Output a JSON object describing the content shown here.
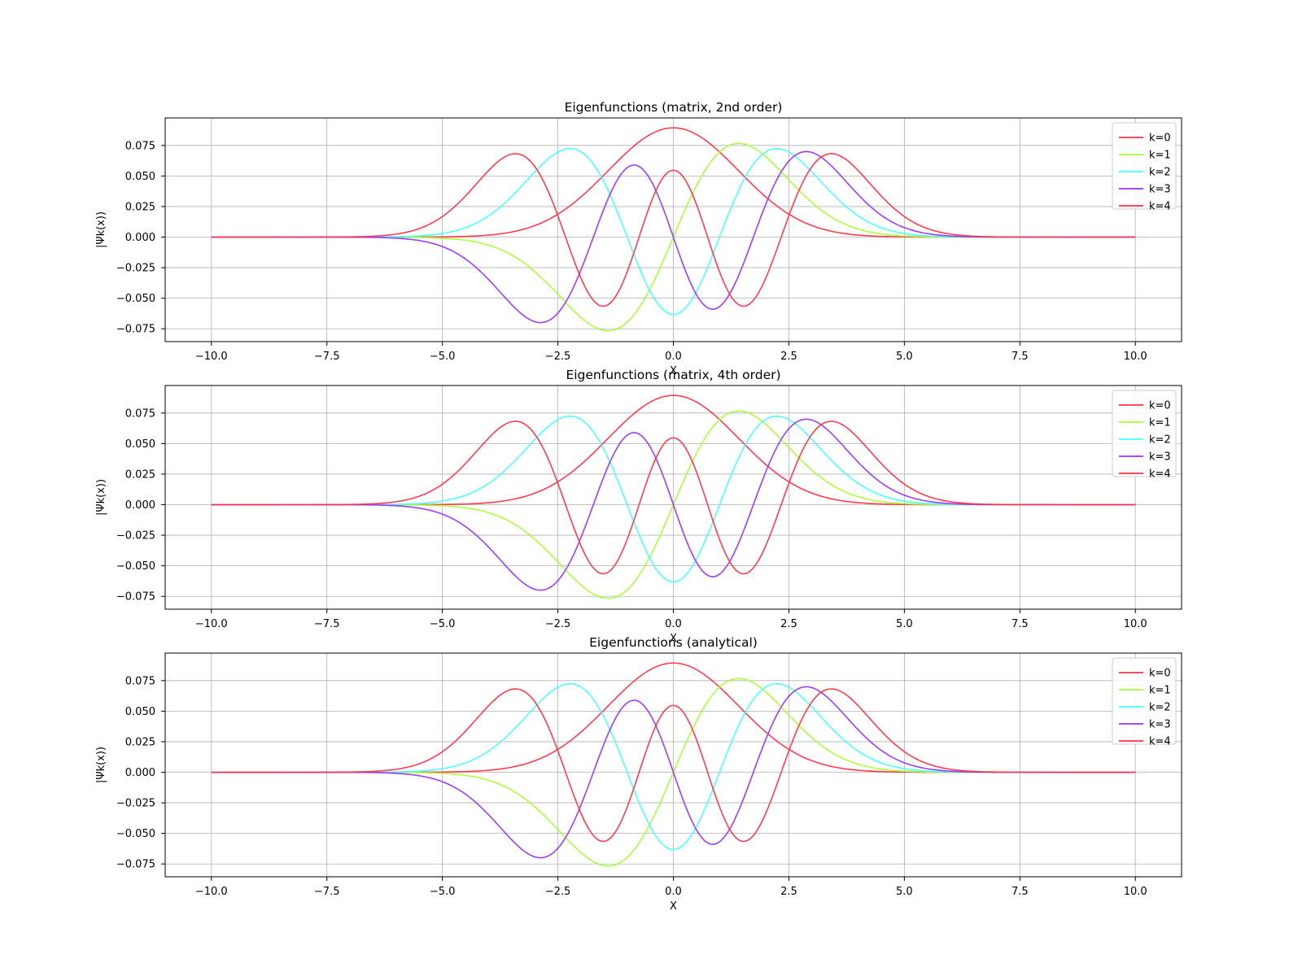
{
  "figure": {
    "background": "#ffffff"
  },
  "legend_labels": [
    "k=0",
    "k=1",
    "k=2",
    "k=3",
    "k=4"
  ],
  "series_colors": [
    "#ff3344",
    "#a6ff33",
    "#44ffff",
    "#9933ff",
    "#ff3344"
  ],
  "chart_data": [
    {
      "type": "line",
      "title": "Eigenfunctions (matrix, 2nd order)",
      "xlabel": "X",
      "ylabel": "|Ψk(x))",
      "xlim": [
        -11,
        11
      ],
      "ylim": [
        -0.0855,
        0.0975
      ],
      "xticks": [
        "−10.0",
        "−7.5",
        "−5.0",
        "−2.5",
        "0.0",
        "2.5",
        "5.0",
        "7.5",
        "10.0"
      ],
      "yticks": [
        "−0.075",
        "−0.050",
        "−0.025",
        "0.000",
        "0.025",
        "0.050",
        "0.075"
      ],
      "grid": true,
      "legend": "top-right",
      "x_domain": [
        -10,
        10
      ],
      "series": [
        {
          "name": "k=0",
          "amplitude": 0.0894,
          "order": 0
        },
        {
          "name": "k=1",
          "amplitude": 0.0894,
          "order": 1
        },
        {
          "name": "k=2",
          "amplitude": 0.0894,
          "order": 2
        },
        {
          "name": "k=3",
          "amplitude": 0.0894,
          "order": 3
        },
        {
          "name": "k=4",
          "amplitude": 0.0894,
          "order": 4
        }
      ]
    },
    {
      "type": "line",
      "title": "Eigenfunctions (matrix, 4th order)",
      "xlabel": "X",
      "ylabel": "|Ψk(x))",
      "xlim": [
        -11,
        11
      ],
      "ylim": [
        -0.0855,
        0.0975
      ],
      "xticks": [
        "−10.0",
        "−7.5",
        "−5.0",
        "−2.5",
        "0.0",
        "2.5",
        "5.0",
        "7.5",
        "10.0"
      ],
      "yticks": [
        "−0.075",
        "−0.050",
        "−0.025",
        "0.000",
        "0.025",
        "0.050",
        "0.075"
      ],
      "grid": true,
      "legend": "top-right",
      "x_domain": [
        -10,
        10
      ],
      "series": [
        {
          "name": "k=0",
          "amplitude": 0.0894,
          "order": 0
        },
        {
          "name": "k=1",
          "amplitude": 0.0894,
          "order": 1
        },
        {
          "name": "k=2",
          "amplitude": 0.0894,
          "order": 2
        },
        {
          "name": "k=3",
          "amplitude": 0.0894,
          "order": 3
        },
        {
          "name": "k=4",
          "amplitude": 0.0894,
          "order": 4
        }
      ]
    },
    {
      "type": "line",
      "title": "Eigenfunctions (analytical)",
      "xlabel": "X",
      "ylabel": "|Ψk(x))",
      "xlim": [
        -11,
        11
      ],
      "ylim": [
        -0.0855,
        0.0975
      ],
      "xticks": [
        "−10.0",
        "−7.5",
        "−5.0",
        "−2.5",
        "0.0",
        "2.5",
        "5.0",
        "7.5",
        "10.0"
      ],
      "yticks": [
        "−0.075",
        "−0.050",
        "−0.025",
        "0.000",
        "0.025",
        "0.050",
        "0.075"
      ],
      "grid": true,
      "legend": "top-right",
      "x_domain": [
        -10,
        10
      ],
      "series": [
        {
          "name": "k=0",
          "amplitude": 0.0894,
          "order": 0
        },
        {
          "name": "k=1",
          "amplitude": 0.0894,
          "order": 1
        },
        {
          "name": "k=2",
          "amplitude": 0.0894,
          "order": 2
        },
        {
          "name": "k=3",
          "amplitude": 0.0894,
          "order": 3
        },
        {
          "name": "k=4",
          "amplitude": 0.0894,
          "order": 4
        }
      ]
    }
  ]
}
